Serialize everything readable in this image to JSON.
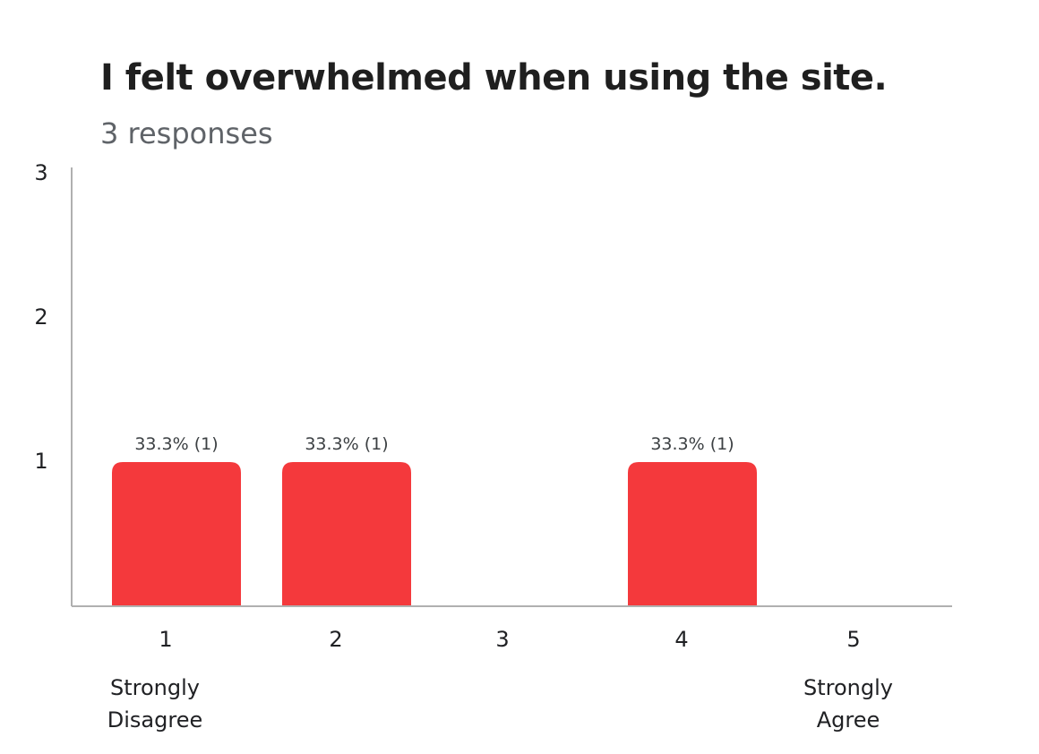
{
  "question": {
    "title": "I felt overwhelmed when using the site.",
    "responses": "3 responses"
  },
  "colors": {
    "bar": "#f4393c",
    "axis": "#b0b0b0"
  },
  "chart_data": {
    "type": "bar",
    "categories": [
      "1",
      "2",
      "3",
      "4",
      "5"
    ],
    "values": [
      1,
      1,
      0,
      1,
      0
    ],
    "data_labels": [
      "33.3% (1)",
      "33.3% (1)",
      "",
      "33.3% (1)",
      ""
    ],
    "category_sublabels": [
      [
        "Strongly",
        "Disagree"
      ],
      [],
      [],
      [],
      [
        "Strongly",
        "Agree"
      ]
    ],
    "yticks": [
      1,
      2,
      3
    ],
    "ylim": [
      0,
      3
    ],
    "grid": false,
    "legend": "none"
  }
}
